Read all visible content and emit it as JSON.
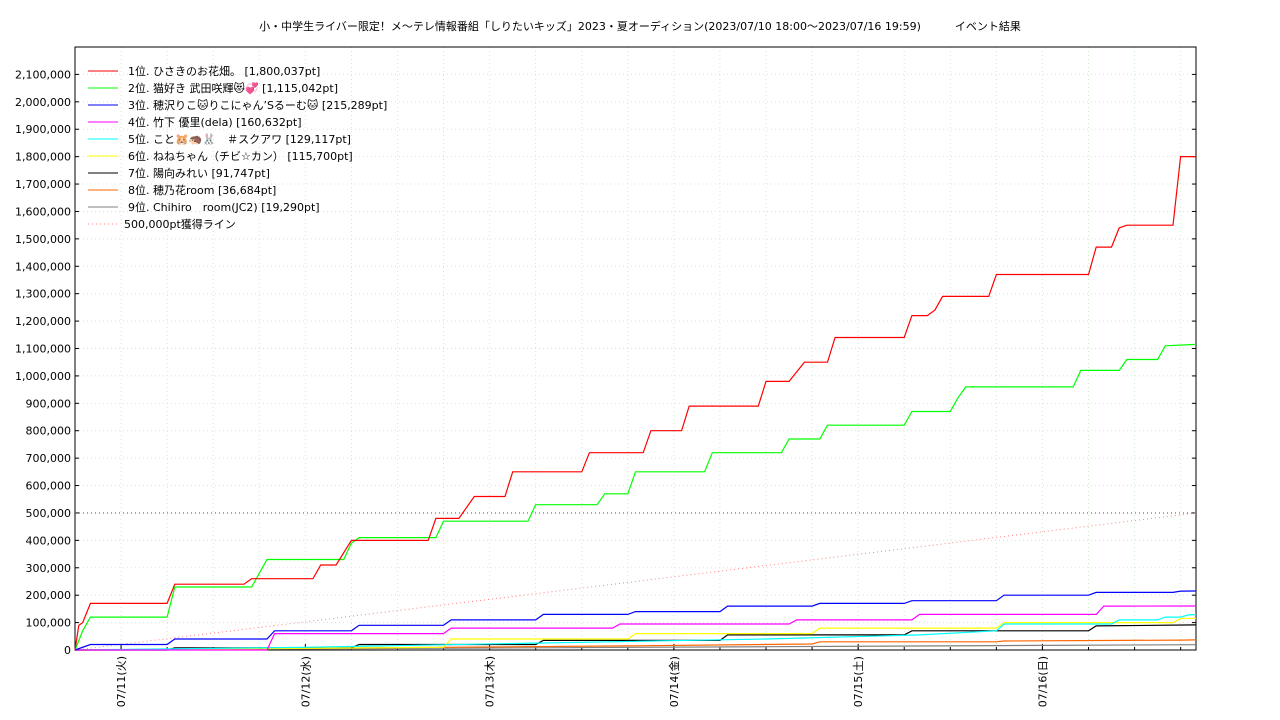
{
  "chart_data": {
    "type": "line",
    "title": "小・中学生ライバー限定！メ〜テレ情報番組「しりたいキッズ」2023・夏オーディション(2023/07/10 18:00〜2023/07/16 19:59)",
    "subtitle": "イベント結果",
    "xlabel": "",
    "ylabel": "",
    "x_unit": "hours since 2023/07/10 18:00",
    "xlim": [
      0,
      146
    ],
    "ylim": [
      0,
      2200000
    ],
    "y_ticks": [
      0,
      100000,
      200000,
      300000,
      400000,
      500000,
      600000,
      700000,
      800000,
      900000,
      1000000,
      1100000,
      1200000,
      1300000,
      1400000,
      1500000,
      1600000,
      1700000,
      1800000,
      1900000,
      2000000,
      2100000
    ],
    "y_tick_labels": [
      "0",
      "100,000",
      "200,000",
      "300,000",
      "400,000",
      "500,000",
      "600,000",
      "700,000",
      "800,000",
      "900,000",
      "1,000,000",
      "1,100,000",
      "1,200,000",
      "1,300,000",
      "1,400,000",
      "1,500,000",
      "1,600,000",
      "1,700,000",
      "1,800,000",
      "1,900,000",
      "2,000,000",
      "2,100,000"
    ],
    "x_ticks": [
      6,
      30,
      54,
      78,
      102,
      126
    ],
    "x_tick_labels": [
      "07/11(火)",
      "07/12(水)",
      "07/13(木)",
      "07/14(金)",
      "07/15(土)",
      "07/16(日)"
    ],
    "grid": true,
    "legend_position": "top-left",
    "series": [
      {
        "name": "1位. ひさきのお花畑。 [1,800,037pt]",
        "color": "#ff0000",
        "x": [
          0,
          0.5,
          1,
          2,
          12,
          13,
          22,
          23,
          31,
          32,
          34,
          36,
          40,
          41,
          46,
          47,
          50,
          52,
          56,
          57,
          59,
          61,
          66,
          67,
          70,
          72,
          74,
          75,
          79,
          80,
          89,
          90,
          93,
          95,
          98,
          99,
          108,
          109,
          111,
          112,
          113,
          114,
          119,
          120,
          132,
          133,
          135,
          136,
          137,
          138,
          143,
          144,
          146
        ],
        "y": [
          0,
          90000,
          100000,
          170000,
          170000,
          240000,
          240000,
          260000,
          260000,
          310000,
          310000,
          400000,
          400000,
          400000,
          400000,
          480000,
          480000,
          560000,
          560000,
          650000,
          650000,
          650000,
          650000,
          720000,
          720000,
          720000,
          720000,
          800000,
          800000,
          890000,
          890000,
          980000,
          980000,
          1050000,
          1050000,
          1140000,
          1140000,
          1220000,
          1220000,
          1240000,
          1290000,
          1290000,
          1290000,
          1370000,
          1370000,
          1470000,
          1470000,
          1540000,
          1550000,
          1550000,
          1550000,
          1800000,
          1800037
        ]
      },
      {
        "name": "2位. 猫好き 武田咲輝😻💞 [1,115,042pt]",
        "color": "#00ff00",
        "x": [
          0,
          1,
          2,
          12,
          13,
          22,
          23,
          25,
          35,
          36,
          37,
          47,
          48,
          59,
          60,
          68,
          69,
          72,
          73,
          82,
          83,
          92,
          93,
          97,
          98,
          108,
          109,
          113,
          114,
          115,
          116,
          130,
          131,
          136,
          137,
          141,
          142,
          146
        ],
        "y": [
          0,
          70000,
          120000,
          120000,
          230000,
          230000,
          230000,
          330000,
          330000,
          390000,
          410000,
          410000,
          470000,
          470000,
          530000,
          530000,
          570000,
          570000,
          650000,
          650000,
          720000,
          720000,
          770000,
          770000,
          820000,
          820000,
          870000,
          870000,
          870000,
          920000,
          960000,
          960000,
          1020000,
          1020000,
          1060000,
          1060000,
          1110000,
          1115042
        ]
      },
      {
        "name": "3位. 穂沢りこ🐱りこにゃん’Sるーむ🐱 [215,289pt]",
        "color": "#0000ff",
        "x": [
          0,
          2,
          12,
          13,
          25,
          26,
          36,
          37,
          48,
          49,
          60,
          61,
          72,
          73,
          84,
          85,
          96,
          97,
          108,
          109,
          120,
          121,
          132,
          133,
          143,
          144,
          146
        ],
        "y": [
          0,
          20000,
          20000,
          40000,
          40000,
          70000,
          70000,
          90000,
          90000,
          110000,
          110000,
          130000,
          130000,
          140000,
          140000,
          160000,
          160000,
          170000,
          170000,
          180000,
          180000,
          200000,
          200000,
          210000,
          210000,
          215000,
          215289
        ]
      },
      {
        "name": "4位. 竹下 優里(dela) [160,632pt]",
        "color": "#ff00ff",
        "x": [
          0,
          25,
          26,
          48,
          49,
          70,
          71,
          93,
          94,
          109,
          110,
          133,
          134,
          146
        ],
        "y": [
          0,
          0,
          60000,
          60000,
          80000,
          80000,
          95000,
          95000,
          110000,
          110000,
          130000,
          130000,
          160000,
          160632
        ]
      },
      {
        "name": "5位. こと🐹🦔🐰　＃スクアワ [129,117pt]",
        "color": "#00ffff",
        "x": [
          0,
          30,
          60,
          90,
          110,
          120,
          121,
          135,
          136,
          141,
          142,
          144,
          145,
          146
        ],
        "y": [
          0,
          10000,
          25000,
          40000,
          55000,
          70000,
          95000,
          95000,
          110000,
          110000,
          120000,
          120000,
          128000,
          129117
        ]
      },
      {
        "name": "6位. ねねちゃん（チビ☆カン） [115,700pt]",
        "color": "#ffff00",
        "x": [
          0,
          48,
          49,
          72,
          73,
          96,
          97,
          120,
          121,
          143,
          144,
          146
        ],
        "y": [
          0,
          10000,
          40000,
          40000,
          60000,
          60000,
          80000,
          80000,
          100000,
          100000,
          115000,
          115700
        ]
      },
      {
        "name": "7位. 陽向みれい [91,747pt]",
        "color": "#000000",
        "x": [
          0,
          12,
          13,
          36,
          37,
          60,
          61,
          84,
          85,
          108,
          109,
          132,
          133,
          146
        ],
        "y": [
          0,
          0,
          8000,
          8000,
          20000,
          20000,
          35000,
          35000,
          55000,
          55000,
          70000,
          70000,
          88000,
          91747
        ]
      },
      {
        "name": "8位. 穂乃花room [36,684pt]",
        "color": "#ff6600",
        "x": [
          0,
          24,
          48,
          72,
          96,
          97,
          120,
          121,
          144,
          146
        ],
        "y": [
          0,
          5000,
          10000,
          15000,
          22000,
          30000,
          30000,
          33000,
          36000,
          36684
        ]
      },
      {
        "name": "9位. Chihiro　room(JC2) [19,290pt]",
        "color": "#808080",
        "x": [
          0,
          30,
          60,
          90,
          120,
          146
        ],
        "y": [
          0,
          4000,
          8000,
          12000,
          16000,
          19290
        ]
      },
      {
        "name": "500,000pt獲得ライン",
        "color": "#ff8080",
        "dotted": true,
        "x": [
          0,
          146
        ],
        "y": [
          0,
          500000
        ]
      }
    ],
    "reference_line": {
      "y": 500000,
      "color": "#ff0000"
    }
  }
}
